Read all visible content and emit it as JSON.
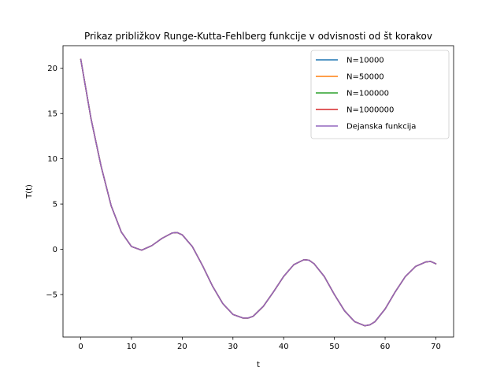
{
  "chart_data": {
    "type": "line",
    "title": "Prikaz približkov Runge-Kutta-Fehlberg funkcije v odvisnosti od št korakov",
    "xlabel": "t",
    "ylabel": "T(t)",
    "xlim": [
      -3.5,
      73.5
    ],
    "ylim": [
      -9.7,
      22.5
    ],
    "xticks": [
      0,
      10,
      20,
      30,
      40,
      50,
      60,
      70
    ],
    "yticks": [
      -5,
      0,
      5,
      10,
      15,
      20
    ],
    "grid": false,
    "legend_position": "top-right",
    "x": [
      0,
      2,
      4,
      6,
      8,
      10,
      12,
      14,
      16,
      18,
      19,
      20,
      22,
      24,
      26,
      28,
      30,
      32,
      33,
      34,
      36,
      38,
      40,
      42,
      44,
      45,
      46,
      48,
      50,
      52,
      54,
      56,
      57,
      58,
      60,
      62,
      64,
      66,
      68,
      69,
      70
    ],
    "series": [
      {
        "name": "N=10000",
        "color": "#1f77b4",
        "values": [
          21.0,
          14.5,
          9.2,
          4.8,
          1.9,
          0.3,
          -0.1,
          0.4,
          1.2,
          1.8,
          1.85,
          1.6,
          0.3,
          -1.8,
          -4.1,
          -6.0,
          -7.2,
          -7.6,
          -7.6,
          -7.4,
          -6.3,
          -4.7,
          -3.0,
          -1.7,
          -1.15,
          -1.2,
          -1.6,
          -3.0,
          -5.0,
          -6.8,
          -8.0,
          -8.45,
          -8.35,
          -8.0,
          -6.6,
          -4.7,
          -3.0,
          -1.9,
          -1.4,
          -1.35,
          -1.6
        ]
      },
      {
        "name": "N=50000",
        "color": "#ff7f0e",
        "values": [
          21.0,
          14.5,
          9.2,
          4.8,
          1.9,
          0.3,
          -0.1,
          0.4,
          1.2,
          1.8,
          1.85,
          1.6,
          0.3,
          -1.8,
          -4.1,
          -6.0,
          -7.2,
          -7.6,
          -7.6,
          -7.4,
          -6.3,
          -4.7,
          -3.0,
          -1.7,
          -1.15,
          -1.2,
          -1.6,
          -3.0,
          -5.0,
          -6.8,
          -8.0,
          -8.45,
          -8.35,
          -8.0,
          -6.6,
          -4.7,
          -3.0,
          -1.9,
          -1.4,
          -1.35,
          -1.6
        ]
      },
      {
        "name": "N=100000",
        "color": "#2ca02c",
        "values": [
          21.0,
          14.5,
          9.2,
          4.8,
          1.9,
          0.3,
          -0.1,
          0.4,
          1.2,
          1.8,
          1.85,
          1.6,
          0.3,
          -1.8,
          -4.1,
          -6.0,
          -7.2,
          -7.6,
          -7.6,
          -7.4,
          -6.3,
          -4.7,
          -3.0,
          -1.7,
          -1.15,
          -1.2,
          -1.6,
          -3.0,
          -5.0,
          -6.8,
          -8.0,
          -8.45,
          -8.35,
          -8.0,
          -6.6,
          -4.7,
          -3.0,
          -1.9,
          -1.4,
          -1.35,
          -1.6
        ]
      },
      {
        "name": "N=1000000",
        "color": "#d62728",
        "values": [
          21.0,
          14.5,
          9.2,
          4.8,
          1.9,
          0.3,
          -0.1,
          0.4,
          1.2,
          1.8,
          1.85,
          1.6,
          0.3,
          -1.8,
          -4.1,
          -6.0,
          -7.2,
          -7.6,
          -7.6,
          -7.4,
          -6.3,
          -4.7,
          -3.0,
          -1.7,
          -1.15,
          -1.2,
          -1.6,
          -3.0,
          -5.0,
          -6.8,
          -8.0,
          -8.45,
          -8.35,
          -8.0,
          -6.6,
          -4.7,
          -3.0,
          -1.9,
          -1.4,
          -1.35,
          -1.6
        ]
      },
      {
        "name": "Dejanska funkcija",
        "color": "#9467bd",
        "values": [
          21.0,
          14.5,
          9.2,
          4.8,
          1.9,
          0.3,
          -0.1,
          0.4,
          1.2,
          1.8,
          1.85,
          1.6,
          0.3,
          -1.8,
          -4.1,
          -6.0,
          -7.2,
          -7.6,
          -7.6,
          -7.4,
          -6.3,
          -4.7,
          -3.0,
          -1.7,
          -1.15,
          -1.2,
          -1.6,
          -3.0,
          -5.0,
          -6.8,
          -8.0,
          -8.45,
          -8.35,
          -8.0,
          -6.6,
          -4.7,
          -3.0,
          -1.9,
          -1.4,
          -1.35,
          -1.6
        ]
      }
    ]
  }
}
